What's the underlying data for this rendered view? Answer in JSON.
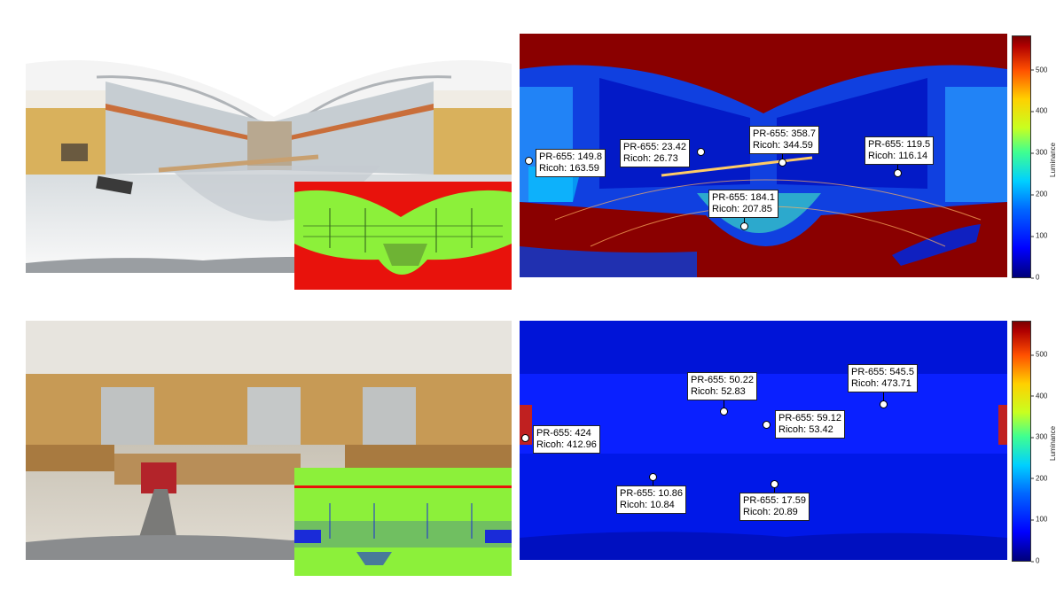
{
  "colorbar": {
    "title": "Luminance",
    "ticks": [
      "0",
      "100",
      "200",
      "300",
      "400",
      "500"
    ],
    "tick_values": [
      0,
      100,
      200,
      300,
      400,
      500
    ],
    "max_value": 580,
    "colors": [
      "#00007a",
      "#0000ff",
      "#00d0ff",
      "#c8ff20",
      "#ffd000",
      "#ff5000",
      "#7a0000"
    ]
  },
  "top_row": {
    "measurements": [
      {
        "pr655": "PR-655: 149.8",
        "ricoh": "Ricoh: 163.59"
      },
      {
        "pr655": "PR-655: 23.42",
        "ricoh": "Ricoh: 26.73"
      },
      {
        "pr655": "PR-655: 358.7",
        "ricoh": "Ricoh: 344.59"
      },
      {
        "pr655": "PR-655: 119.5",
        "ricoh": "Ricoh: 116.14"
      },
      {
        "pr655": "PR-655: 184.1",
        "ricoh": "Ricoh: 207.85"
      }
    ]
  },
  "bottom_row": {
    "measurements": [
      {
        "pr655": "PR-655: 50.22",
        "ricoh": "Ricoh: 52.83"
      },
      {
        "pr655": "PR-655: 545.5",
        "ricoh": "Ricoh: 473.71"
      },
      {
        "pr655": "PR-655: 59.12",
        "ricoh": "Ricoh: 53.42"
      },
      {
        "pr655": "PR-655: 424",
        "ricoh": "Ricoh: 412.96"
      },
      {
        "pr655": "PR-655: 10.86",
        "ricoh": "Ricoh: 10.84"
      },
      {
        "pr655": "PR-655: 17.59",
        "ricoh": "Ricoh: 20.89"
      }
    ]
  },
  "mask_colors": {
    "red": "#e8120c",
    "green": "#8cf03a",
    "blue": "#1a2bd8"
  }
}
